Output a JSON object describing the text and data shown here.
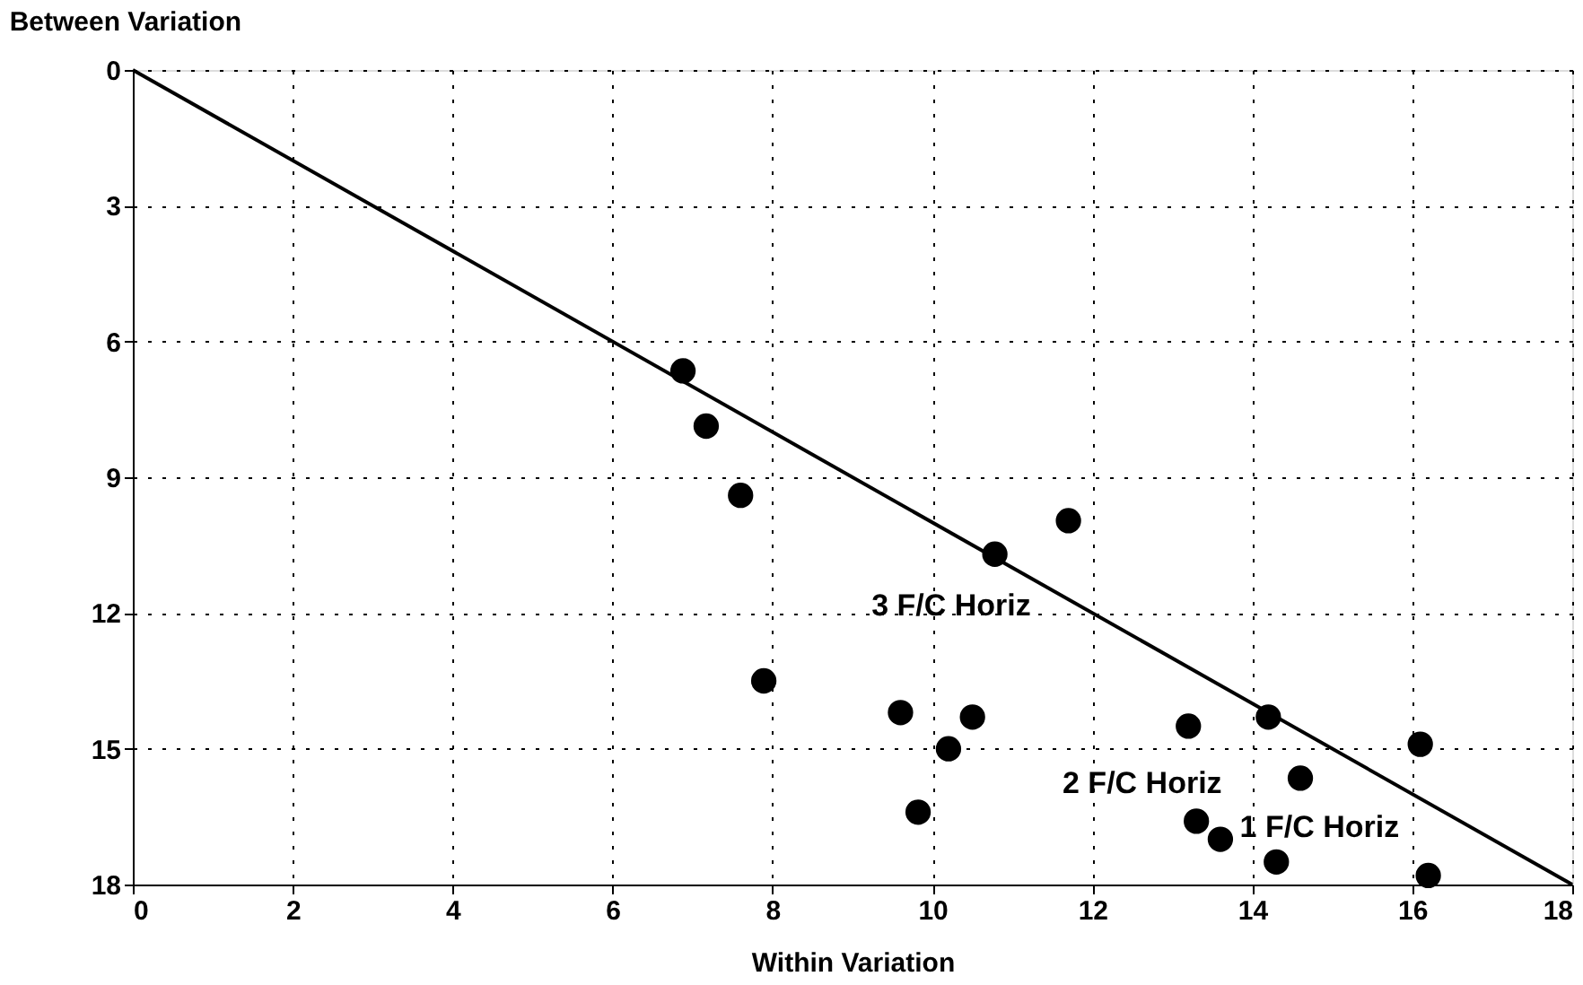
{
  "chart_data": {
    "type": "scatter",
    "xlabel": "Within Variation",
    "ylabel": "Between Variation",
    "xlim": [
      0,
      18
    ],
    "ylim": [
      18,
      0
    ],
    "xticks": [
      0,
      2,
      4,
      6,
      8,
      10,
      12,
      14,
      16,
      18
    ],
    "yticks": [
      0,
      3,
      6,
      9,
      12,
      15,
      18
    ],
    "grid": true,
    "marker": "circle",
    "series": [
      {
        "color": "#000000",
        "x": [
          6.88,
          7.17,
          7.6,
          7.89,
          9.6,
          10.5,
          10.2,
          9.82,
          10.78,
          11.7,
          13.2,
          14.2,
          16.1,
          14.6,
          13.3,
          13.6,
          14.3,
          16.2
        ],
        "values": [
          6.65,
          7.87,
          9.4,
          13.5,
          14.2,
          14.3,
          15.0,
          16.4,
          10.7,
          9.96,
          14.5,
          14.3,
          14.9,
          15.65,
          16.6,
          17.0,
          17.5,
          17.8
        ]
      },
      {
        "type": "line",
        "color": "#000000",
        "x": [
          0,
          18
        ],
        "values": [
          0,
          18
        ],
        "line_style": "solid",
        "marker": "none"
      }
    ],
    "annotations": [
      "3 F/C Horiz",
      "2 F/C Horiz",
      "1 F/C Horiz"
    ]
  }
}
